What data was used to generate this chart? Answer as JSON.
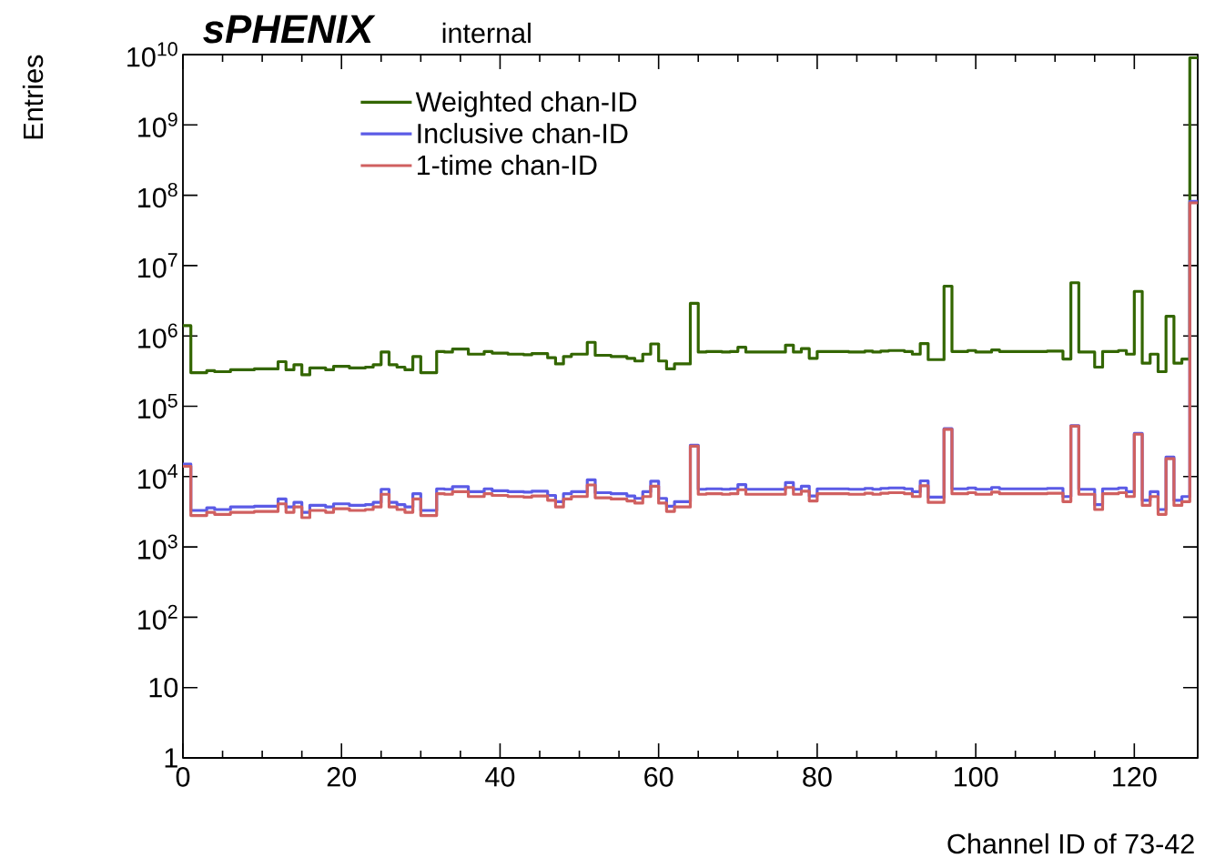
{
  "chart_data": {
    "type": "histogram",
    "title": "sPHENIX",
    "subtitle": "internal",
    "xlabel": "Channel ID of 73-42",
    "ylabel": "Entries",
    "bins": [
      0,
      1,
      2,
      3,
      4,
      5,
      6,
      7,
      8,
      9,
      10,
      11,
      12,
      13,
      14,
      15,
      16,
      17,
      18,
      19,
      20,
      21,
      22,
      23,
      24,
      25,
      26,
      27,
      28,
      29,
      30,
      31,
      32,
      33,
      34,
      35,
      36,
      37,
      38,
      39,
      40,
      41,
      42,
      43,
      44,
      45,
      46,
      47,
      48,
      49,
      50,
      51,
      52,
      53,
      54,
      55,
      56,
      57,
      58,
      59,
      60,
      61,
      62,
      63,
      64,
      65,
      66,
      67,
      68,
      69,
      70,
      71,
      72,
      73,
      74,
      75,
      76,
      77,
      78,
      79,
      80,
      81,
      82,
      83,
      84,
      85,
      86,
      87,
      88,
      89,
      90,
      91,
      92,
      93,
      94,
      95,
      96,
      97,
      98,
      99,
      100,
      101,
      102,
      103,
      104,
      105,
      106,
      107,
      108,
      109,
      110,
      111,
      112,
      113,
      114,
      115,
      116,
      117,
      118,
      119,
      120,
      121,
      122,
      123,
      124,
      125,
      126,
      127,
      128
    ],
    "series": [
      {
        "name": "Weighted chan-ID",
        "color": "#336600",
        "values": [
          1400000,
          300000,
          300000,
          320000,
          310000,
          310000,
          330000,
          330000,
          330000,
          340000,
          340000,
          340000,
          430000,
          330000,
          390000,
          280000,
          350000,
          350000,
          330000,
          370000,
          370000,
          350000,
          350000,
          360000,
          390000,
          590000,
          390000,
          360000,
          330000,
          510000,
          300000,
          300000,
          600000,
          590000,
          650000,
          650000,
          550000,
          550000,
          600000,
          570000,
          570000,
          550000,
          550000,
          540000,
          560000,
          560000,
          490000,
          400000,
          510000,
          550000,
          550000,
          810000,
          530000,
          530000,
          510000,
          510000,
          480000,
          440000,
          550000,
          770000,
          440000,
          340000,
          400000,
          400000,
          2900000,
          590000,
          600000,
          600000,
          590000,
          600000,
          690000,
          590000,
          590000,
          590000,
          590000,
          590000,
          740000,
          590000,
          660000,
          480000,
          600000,
          600000,
          600000,
          600000,
          590000,
          590000,
          610000,
          590000,
          610000,
          620000,
          620000,
          600000,
          550000,
          780000,
          460000,
          460000,
          5100000,
          600000,
          600000,
          620000,
          590000,
          590000,
          630000,
          600000,
          600000,
          600000,
          600000,
          600000,
          600000,
          610000,
          610000,
          470000,
          5700000,
          590000,
          590000,
          360000,
          600000,
          600000,
          620000,
          550000,
          4300000,
          410000,
          550000,
          310000,
          1900000,
          410000,
          470000,
          9000000000
        ]
      },
      {
        "name": "Inclusive chan-ID",
        "color": "#5b5be6",
        "values": [
          15000,
          3300,
          3300,
          3600,
          3400,
          3400,
          3700,
          3700,
          3700,
          3800,
          3800,
          3800,
          4800,
          3700,
          4300,
          3100,
          3900,
          3900,
          3700,
          4100,
          4100,
          3900,
          3900,
          4000,
          4300,
          6600,
          4300,
          4000,
          3700,
          5700,
          3300,
          3300,
          6700,
          6600,
          7200,
          7200,
          6100,
          6100,
          6700,
          6300,
          6300,
          6100,
          6100,
          6000,
          6200,
          6200,
          5400,
          4400,
          5700,
          6100,
          6100,
          9000,
          5900,
          5900,
          5700,
          5700,
          5300,
          4900,
          6100,
          8600,
          4900,
          3800,
          4400,
          4400,
          28000,
          6600,
          6700,
          6700,
          6600,
          6700,
          7700,
          6600,
          6600,
          6600,
          6600,
          6600,
          8200,
          6600,
          7300,
          5300,
          6700,
          6700,
          6700,
          6700,
          6600,
          6600,
          6800,
          6600,
          6800,
          6900,
          6900,
          6700,
          6100,
          8700,
          5100,
          5100,
          48000,
          6700,
          6700,
          6900,
          6600,
          6600,
          7000,
          6700,
          6700,
          6700,
          6700,
          6700,
          6700,
          6800,
          6800,
          5200,
          53000,
          6600,
          6600,
          4000,
          6700,
          6700,
          6900,
          6100,
          41000,
          4600,
          6100,
          3400,
          19000,
          4600,
          5200,
          82000000
        ]
      },
      {
        "name": "1-time chan-ID",
        "color": "#d06060",
        "values": [
          14000,
          2800,
          2800,
          3100,
          2900,
          2900,
          3100,
          3100,
          3100,
          3200,
          3200,
          3200,
          4100,
          3100,
          3700,
          2600,
          3300,
          3300,
          3100,
          3500,
          3500,
          3300,
          3300,
          3400,
          3700,
          5600,
          3700,
          3400,
          3100,
          4800,
          2800,
          2800,
          5700,
          5600,
          6100,
          6100,
          5200,
          5200,
          5700,
          5400,
          5400,
          5200,
          5200,
          5100,
          5300,
          5300,
          4600,
          3700,
          4800,
          5200,
          5200,
          7600,
          5000,
          5000,
          4800,
          4800,
          4500,
          4200,
          5200,
          7300,
          4200,
          3200,
          3700,
          3700,
          27000,
          5600,
          5700,
          5700,
          5600,
          5700,
          6500,
          5600,
          5600,
          5600,
          5600,
          5600,
          7000,
          5600,
          6200,
          4500,
          5700,
          5700,
          5700,
          5700,
          5600,
          5600,
          5800,
          5600,
          5800,
          5900,
          5900,
          5700,
          5200,
          7400,
          4300,
          4300,
          47000,
          5700,
          5700,
          5900,
          5600,
          5600,
          6000,
          5700,
          5700,
          5700,
          5700,
          5700,
          5700,
          5800,
          5800,
          4400,
          52000,
          5600,
          5600,
          3400,
          5700,
          5700,
          5900,
          5200,
          40000,
          3900,
          5200,
          2900,
          18000,
          3900,
          4400,
          78000000
        ]
      }
    ],
    "xlim": [
      0,
      128
    ],
    "xticks": [
      0,
      20,
      40,
      60,
      80,
      100,
      120
    ],
    "ylim": [
      1,
      10000000000
    ],
    "yticks": [
      1,
      10,
      {
        "value": 100,
        "label": "10$^{2}$"
      },
      {
        "value": 1000,
        "label": "10$^{3}$"
      },
      {
        "value": 10000,
        "label": "10$^{4}$"
      },
      {
        "value": 100000,
        "label": "10$^{5}$"
      },
      {
        "value": 1000000,
        "label": "10$^{6}$"
      },
      {
        "value": 10000000,
        "label": "10$^{7}$"
      },
      {
        "value": 100000000,
        "label": "10$^{8}$"
      },
      {
        "value": 1000000000,
        "label": "10$^{9}$"
      },
      {
        "value": 10000000000,
        "label": "10$^{10}$"
      }
    ],
    "log": "y",
    "grid": false,
    "legend": "top left"
  }
}
